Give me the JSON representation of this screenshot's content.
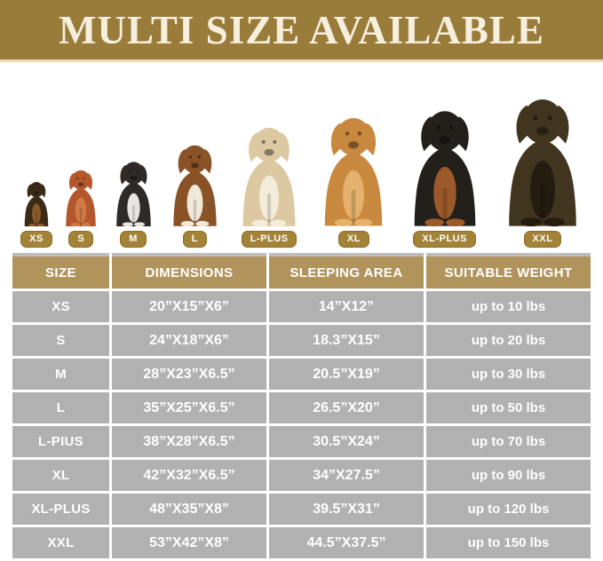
{
  "banner": {
    "title": "MULTI SIZE AVAILABLE"
  },
  "colors": {
    "banner_gold": "#9a7c3a",
    "banner_underline_tan": "#ecd9ae",
    "title_cream": "#f7efdd",
    "badge_gold": "#a28338",
    "table_header_khaki": "#b0945c",
    "table_row_gray": "#b1b1b1",
    "table_text": "#ffffff"
  },
  "dogs": [
    {
      "label": "XS",
      "breed": "dachshund",
      "color_main": "#3b2b16",
      "color_accent": "#8a5a28",
      "height": 53
    },
    {
      "label": "S",
      "breed": "toy-poodle",
      "color_main": "#b4572c",
      "color_accent": "#cf7a47",
      "height": 67
    },
    {
      "label": "M",
      "breed": "french-bulldog",
      "color_main": "#2d2a28",
      "color_accent": "#e8e4df",
      "height": 77
    },
    {
      "label": "L",
      "breed": "beagle",
      "color_main": "#8a5327",
      "color_accent": "#f0e8d8",
      "height": 97
    },
    {
      "label": "L-PLUS",
      "breed": "cream-labrador",
      "color_main": "#ddc9a1",
      "color_accent": "#f4ecda",
      "height": 118
    },
    {
      "label": "XL",
      "breed": "golden-retriever",
      "color_main": "#c8893e",
      "color_accent": "#e4b26d",
      "height": 130
    },
    {
      "label": "XL-PLUS",
      "breed": "doberman",
      "color_main": "#23201c",
      "color_accent": "#9c5a2a",
      "height": 138
    },
    {
      "label": "XXL",
      "breed": "german-shepherd",
      "color_main": "#42351f",
      "color_accent": "#241c10",
      "height": 152
    }
  ],
  "chart_data": {
    "type": "table",
    "title": "MULTI SIZE AVAILABLE",
    "columns": [
      "SIZE",
      "DIMENSIONS",
      "SLEEPING AREA",
      "SUITABLE WEIGHT"
    ],
    "rows": [
      {
        "size": "XS",
        "dimensions": "20”X15”X6”",
        "sleeping_area": "14”X12”",
        "suitable_weight": "up to 10 lbs"
      },
      {
        "size": "S",
        "dimensions": "24”X18”X6”",
        "sleeping_area": "18.3”X15”",
        "suitable_weight": "up to 20 lbs"
      },
      {
        "size": "M",
        "dimensions": "28”X23”X6.5”",
        "sleeping_area": "20.5”X19”",
        "suitable_weight": "up to 30 lbs"
      },
      {
        "size": "L",
        "dimensions": "35”X25”X6.5”",
        "sleeping_area": "26.5”X20”",
        "suitable_weight": "up to 50 lbs"
      },
      {
        "size": "L-PIUS",
        "dimensions": "38”X28”X6.5”",
        "sleeping_area": "30.5”X24”",
        "suitable_weight": "up to 70 lbs"
      },
      {
        "size": "XL",
        "dimensions": "42”X32”X6.5”",
        "sleeping_area": "34”X27.5”",
        "suitable_weight": "up to 90 lbs"
      },
      {
        "size": "XL-PLUS",
        "dimensions": "48”X35”X8”",
        "sleeping_area": "39.5”X31”",
        "suitable_weight": "up to 120 lbs"
      },
      {
        "size": "XXL",
        "dimensions": "53”X42”X8”",
        "sleeping_area": "44.5”X37.5”",
        "suitable_weight": "up to 150 lbs"
      }
    ]
  }
}
